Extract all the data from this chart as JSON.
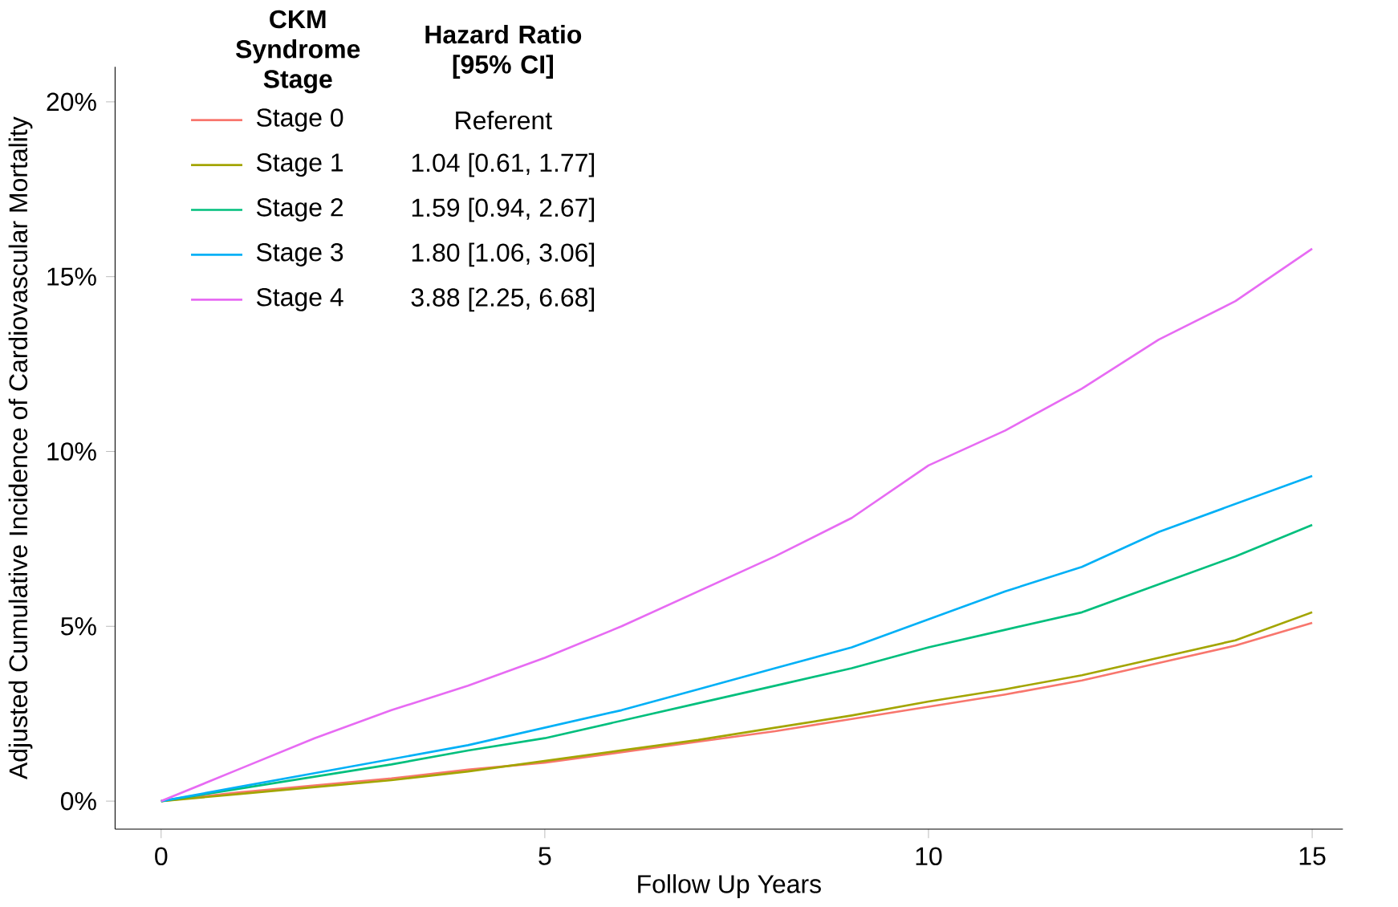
{
  "chart_data": {
    "type": "line",
    "xlabel": "Follow Up Years",
    "ylabel": "Adjusted Cumulative Incidence of Cardiovascular Mortality",
    "legend_title": "CKM Syndrome Stage",
    "legend": "top left",
    "grid": false,
    "marker": "none",
    "line_style": "solid",
    "xlim": [
      -0.6,
      15.4
    ],
    "ylim": [
      -0.8,
      21
    ],
    "xticks": [
      0,
      5,
      10,
      15
    ],
    "yticks": [
      {
        "value": 0,
        "label": "0%"
      },
      {
        "value": 5,
        "label": "5%"
      },
      {
        "value": 10,
        "label": "10%"
      },
      {
        "value": 15,
        "label": "15%"
      },
      {
        "value": 20,
        "label": "20%"
      }
    ],
    "x": [
      0,
      1,
      2,
      3,
      4,
      5,
      6,
      7,
      8,
      9,
      10,
      11,
      12,
      13,
      14,
      15
    ],
    "series": [
      {
        "name": "Stage 0",
        "color": "#f8766d",
        "values": [
          0,
          0.25,
          0.45,
          0.65,
          0.9,
          1.1,
          1.4,
          1.7,
          2.0,
          2.35,
          2.7,
          3.05,
          3.45,
          3.95,
          4.45,
          5.1
        ]
      },
      {
        "name": "Stage 1",
        "color": "#a3a500",
        "values": [
          0,
          0.2,
          0.4,
          0.6,
          0.85,
          1.15,
          1.45,
          1.75,
          2.1,
          2.45,
          2.85,
          3.2,
          3.6,
          4.1,
          4.6,
          5.4
        ]
      },
      {
        "name": "Stage 2",
        "color": "#00bf7d",
        "values": [
          0,
          0.35,
          0.7,
          1.05,
          1.45,
          1.8,
          2.3,
          2.8,
          3.3,
          3.8,
          4.4,
          4.9,
          5.4,
          6.2,
          7.0,
          7.9
        ]
      },
      {
        "name": "Stage 3",
        "color": "#00b0f6",
        "values": [
          0,
          0.4,
          0.8,
          1.2,
          1.6,
          2.1,
          2.6,
          3.2,
          3.8,
          4.4,
          5.2,
          6.0,
          6.7,
          7.7,
          8.5,
          9.3
        ]
      },
      {
        "name": "Stage 4",
        "color": "#e76bf3",
        "values": [
          0,
          0.9,
          1.8,
          2.6,
          3.3,
          4.1,
          5.0,
          6.0,
          7.0,
          8.1,
          9.6,
          10.6,
          11.8,
          13.2,
          14.3,
          15.8
        ]
      }
    ],
    "annotations": [
      "Hazard Ratio [95% CI]",
      "Referent",
      "1.04 [0.61, 1.77]",
      "1.59 [0.94, 2.67]",
      "1.80 [1.06, 3.06]",
      "3.88 [2.25, 6.68]"
    ]
  }
}
